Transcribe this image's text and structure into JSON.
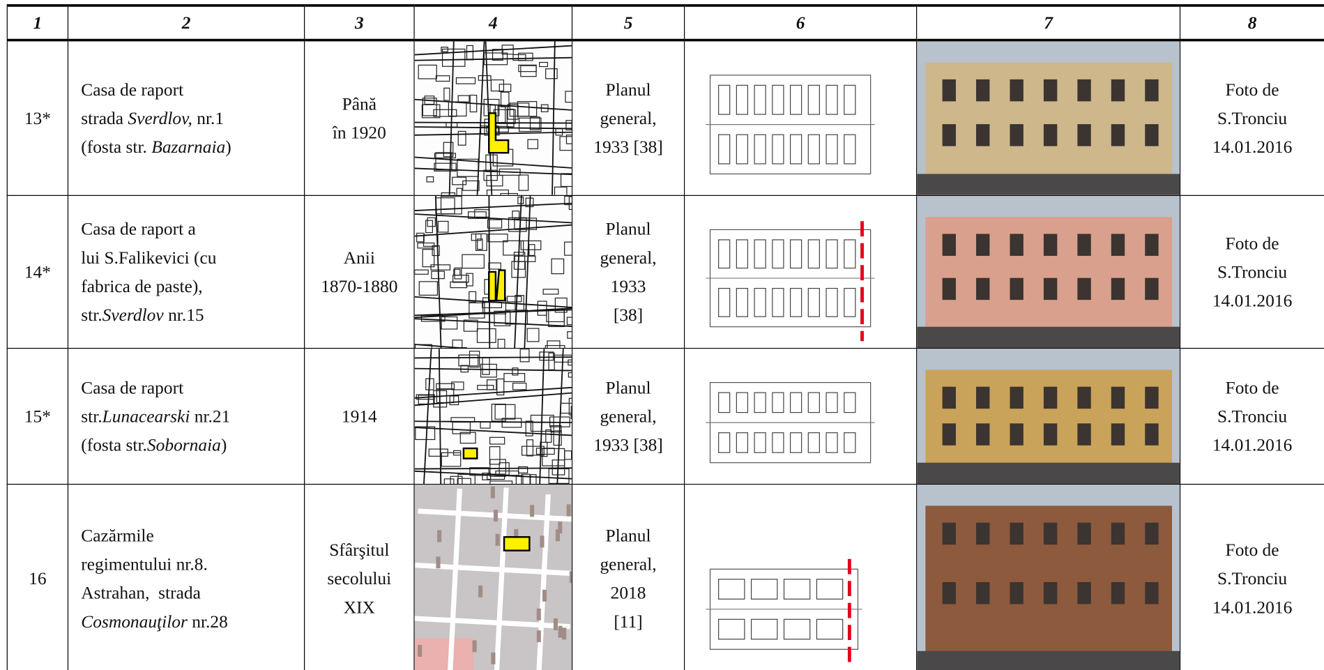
{
  "table": {
    "header": [
      "1",
      "2",
      "3",
      "4",
      "5",
      "6",
      "7",
      "8"
    ],
    "rows": [
      {
        "number": "13*",
        "name": [
          [
            "Casa de raport"
          ],
          [
            "strada ",
            {
              "text": "Sverdlov,",
              "italic": true
            },
            " nr.1"
          ],
          [
            "(fosta str. ",
            {
              "text": "Bazarnaia",
              "italic": true
            },
            ")"
          ]
        ],
        "period": [
          "Până",
          "în 1920"
        ],
        "source": [
          "Planul",
          "general,",
          "1933 [38]"
        ],
        "photo_credit": [
          "Foto de",
          "S.Tronciu",
          "14.01.2016"
        ]
      },
      {
        "number": "14*",
        "name": [
          [
            "Casa de raport a"
          ],
          [
            "lui S.Falikevici (cu"
          ],
          [
            "fabrica de paste),"
          ],
          [
            "str.",
            {
              "text": "Sverdlov",
              "italic": true
            },
            " nr.15"
          ]
        ],
        "period": [
          "Anii",
          "1870-1880"
        ],
        "source": [
          "Planul",
          "general,",
          "1933",
          "[38]"
        ],
        "photo_credit": [
          "Foto de",
          "S.Tronciu",
          "14.01.2016"
        ]
      },
      {
        "number": "15*",
        "name": [
          [
            "Casa de raport"
          ],
          [
            "str.",
            {
              "text": "Lunacearski",
              "italic": true
            },
            " nr.21"
          ],
          [
            "(fosta str.",
            {
              "text": "Sobornaia",
              "italic": true
            },
            ")"
          ]
        ],
        "period": [
          "1914"
        ],
        "source": [
          "Planul",
          "general,",
          "1933 [38]"
        ],
        "photo_credit": [
          "Foto de",
          "S.Tronciu",
          "14.01.2016"
        ]
      },
      {
        "number": "16",
        "name": [
          [
            "Cazărmile"
          ],
          [
            "regimentului nr.8."
          ],
          [
            "Astrahan,  strada"
          ],
          [
            {
              "text": "Cosmonauţilor",
              "italic": true
            },
            " nr.28"
          ]
        ],
        "period": [
          "Sfârşitul",
          "secolului",
          "XIX"
        ],
        "source": [
          "Planul",
          "general,",
          "2018",
          "[11]"
        ],
        "photo_credit": [
          "Foto de",
          "S.Tronciu",
          "14.01.2016"
        ]
      }
    ]
  }
}
